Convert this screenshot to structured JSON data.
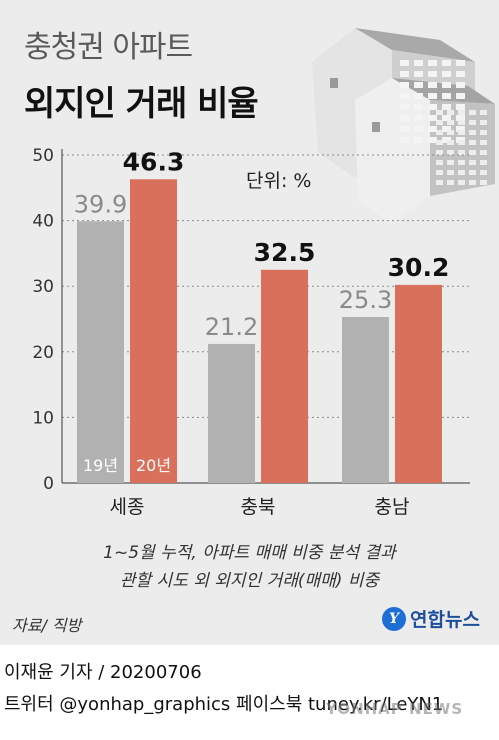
{
  "header": {
    "title_line1": "충청권 아파트",
    "title_line2": "외지인 거래 비율",
    "unit_label": "단위: %"
  },
  "chart_data": {
    "type": "bar",
    "categories": [
      "세종",
      "충북",
      "충남"
    ],
    "series": [
      {
        "name": "19년",
        "values": [
          39.9,
          21.2,
          25.3
        ],
        "color": "#b1b1b1"
      },
      {
        "name": "20년",
        "values": [
          46.3,
          32.5,
          30.2
        ],
        "color": "#d8705b"
      }
    ],
    "yticks": [
      0,
      10,
      20,
      30,
      40,
      50
    ],
    "ylim": [
      0,
      50
    ],
    "grid": "horizontal dotted",
    "legend": "inside first category bars"
  },
  "notes": {
    "line1": "1~5월 누적, 아파트 매매 비중 분석 결과",
    "line2": "관할 시도 외 외지인 거래(매매) 비중"
  },
  "source": "자료/ 직방",
  "agency": {
    "mark": "Y",
    "name": "연합뉴스"
  },
  "credit": {
    "reporter": "이재윤 기자 / 20200706",
    "social": "트위터 @yonhap_graphics  페이스북 tuney.kr/LeYN1"
  },
  "watermark": "YONHAP NEWS",
  "colors": {
    "background": "#ececec",
    "bar_2019": "#b1b1b1",
    "bar_2020": "#d8705b",
    "building_light": "#e9e9e9",
    "building_shade": "#b9b9b9"
  }
}
